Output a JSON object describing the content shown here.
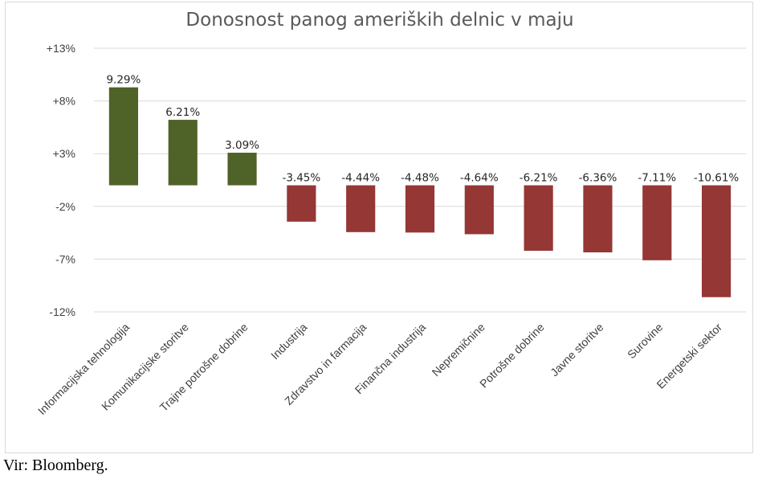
{
  "chart_data": {
    "type": "bar",
    "title": "Donosnost panog ameriških delnic v maju",
    "categories": [
      "Informacijska tehnologija",
      "Komunikacijske storitve",
      "Trajne potrošne dobrine",
      "Industrija",
      "Zdravstvo in farmacija",
      "Finančna industrija",
      "Nepremičnine",
      "Potrošne dobrine",
      "Javne storitve",
      "Surovine",
      "Energetski sektor"
    ],
    "values": [
      9.29,
      6.21,
      3.09,
      -3.45,
      -4.44,
      -4.48,
      -4.64,
      -6.21,
      -6.36,
      -7.11,
      -10.61
    ],
    "data_labels": [
      "9.29%",
      "6.21%",
      "3.09%",
      "-3.45%",
      "-4.44%",
      "-4.48%",
      "-4.64%",
      "-6.21%",
      "-6.36%",
      "-7.11%",
      "-10.61%"
    ],
    "yticks": [
      13,
      8,
      3,
      -2,
      -7,
      -12
    ],
    "ytick_labels": [
      "+13%",
      "+8%",
      "+3%",
      "-2%",
      "-7%",
      "-12%"
    ],
    "ylim": [
      -12,
      13
    ],
    "grid": true,
    "positive_color": "#4f6228",
    "negative_color": "#953735"
  },
  "source": "Vir: Bloomberg."
}
